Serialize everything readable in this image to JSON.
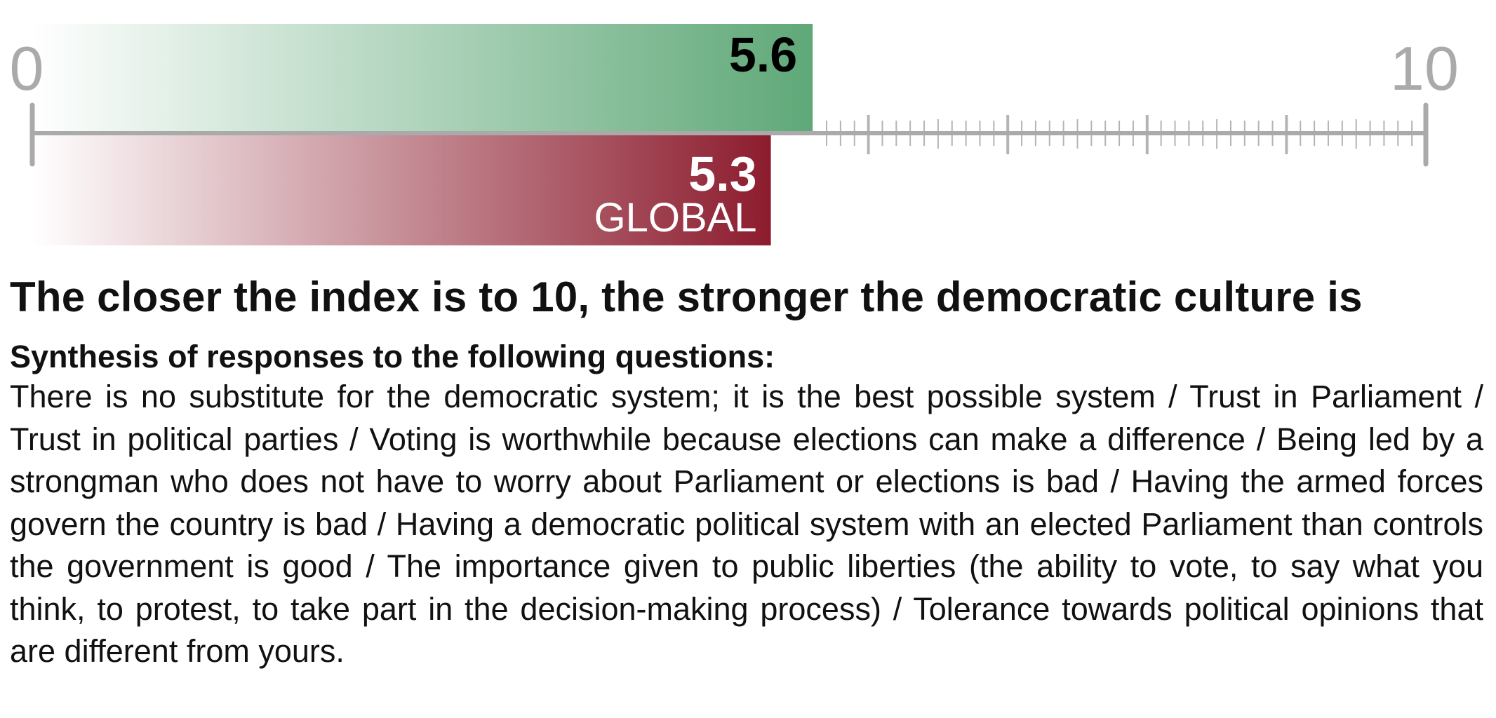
{
  "chart_data": {
    "type": "bar",
    "orientation": "horizontal",
    "scale_min_label": "0",
    "scale_max_label": "10",
    "xlim": [
      0,
      10
    ],
    "series": [
      {
        "value_label": "5.6",
        "value": 5.6,
        "color": "#5fa878"
      },
      {
        "value_label": "5.3",
        "name": "GLOBAL",
        "value": 5.3,
        "color": "#8c1c2e"
      }
    ]
  },
  "text": {
    "headline": "The closer the index is to 10, the stronger the democratic culture is",
    "subhead": "Synthesis of responses to the following questions:",
    "body": "There is no substitute for the democratic system; it is the best possible system / Trust in Parliament / Trust in political parties / Voting is worthwhile because elections can make a difference / Being led by a strongman who does not have to worry about Parliament or elections is bad / Having the armed forces govern the country is bad / Having a democratic political system with an elected Parliament than controls the government is good / The importance given to public liberties (the ability to vote, to say what you think, to protest, to take part in the decision-making process) / Tolerance towards political opinions that are different from yours."
  }
}
